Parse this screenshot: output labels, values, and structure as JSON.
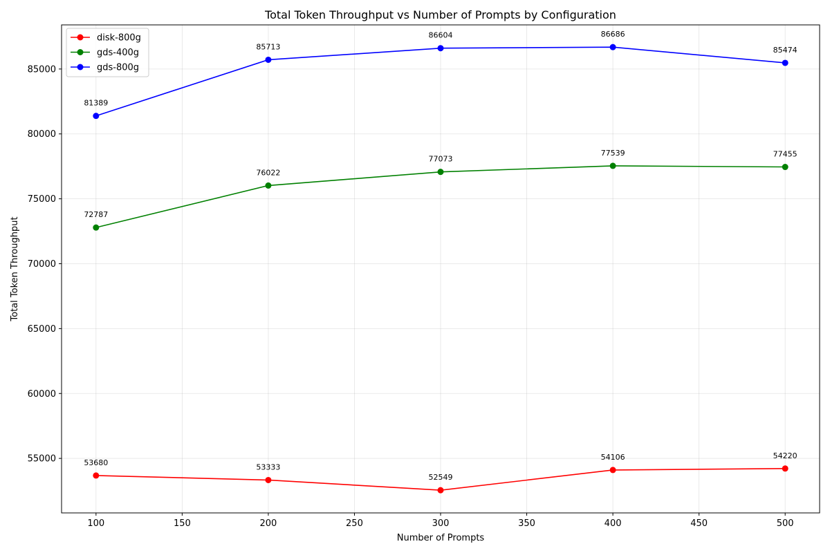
{
  "chart_data": {
    "type": "line",
    "title": "Total Token Throughput vs Number of Prompts by Configuration",
    "xlabel": "Number of Prompts",
    "ylabel": "Total Token Throughput",
    "x": [
      100,
      200,
      300,
      400,
      500
    ],
    "xlim": [
      80,
      520
    ],
    "ylim": [
      50800,
      88400
    ],
    "xticks": [
      100,
      150,
      200,
      250,
      300,
      350,
      400,
      450,
      500
    ],
    "yticks": [
      55000,
      60000,
      65000,
      70000,
      75000,
      80000,
      85000
    ],
    "grid": true,
    "legend_position": "top-left",
    "series": [
      {
        "name": "disk-800g",
        "color": "#ff0000",
        "values": [
          53680,
          53333,
          52549,
          54106,
          54220
        ]
      },
      {
        "name": "gds-400g",
        "color": "#008000",
        "values": [
          72787,
          76022,
          77073,
          77539,
          77455
        ]
      },
      {
        "name": "gds-800g",
        "color": "#0000ff",
        "values": [
          81389,
          85713,
          86604,
          86686,
          85474
        ]
      }
    ]
  }
}
